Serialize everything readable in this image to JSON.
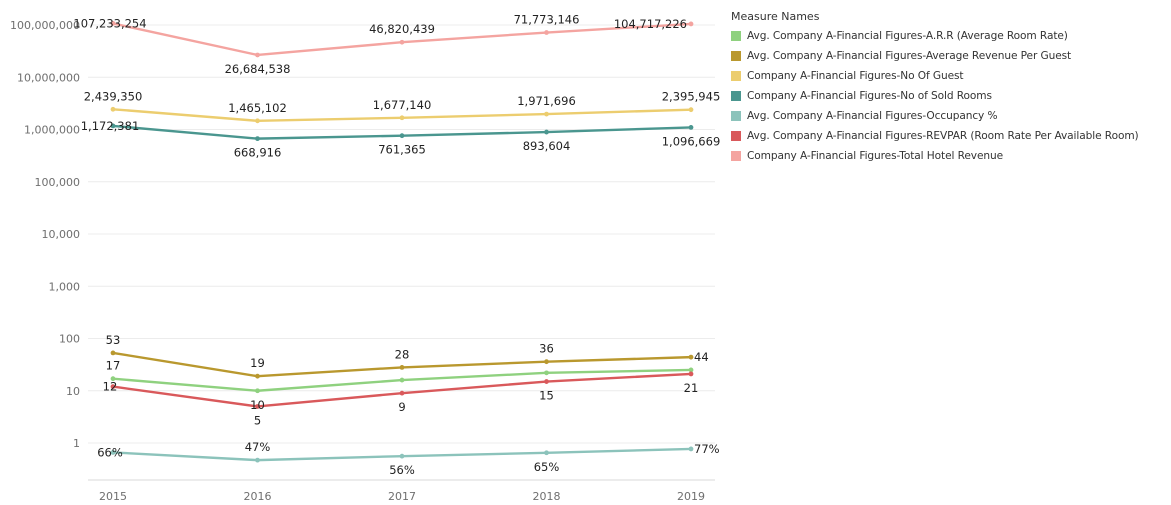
{
  "chart_data": {
    "type": "line",
    "yscale": "log",
    "ylim": [
      1,
      100000000
    ],
    "y_ticks": [
      "1",
      "10",
      "100",
      "1,000",
      "10,000",
      "100,000",
      "1,000,000",
      "10,000,000",
      "100,000,000"
    ],
    "categories": [
      "2015",
      "2016",
      "2017",
      "2018",
      "2019"
    ],
    "grid": true,
    "legend_position": "right",
    "legend_title": "Measure Names",
    "series": [
      {
        "name": "Avg. Company A-Financial Figures-A.R.R (Average Room Rate)",
        "color": "#8fd17f",
        "values": [
          17,
          10,
          16,
          22,
          25
        ],
        "labels": [
          "17",
          "10",
          "",
          "",
          ""
        ],
        "label_pos": [
          "above",
          "below",
          "",
          "",
          ""
        ]
      },
      {
        "name": "Avg. Company A-Financial Figures-Average Revenue Per Guest",
        "color": "#b9982e",
        "values": [
          53,
          19,
          28,
          36,
          44
        ],
        "labels": [
          "53",
          "19",
          "28",
          "36",
          "44"
        ],
        "label_pos": [
          "above",
          "above",
          "above",
          "above",
          "right"
        ]
      },
      {
        "name": "Company A-Financial Figures-No Of Guest",
        "color": "#eccd6f",
        "values": [
          2439350,
          1465102,
          1677140,
          1971696,
          2395945
        ],
        "labels": [
          "2,439,350",
          "1,465,102",
          "1,677,140",
          "1,971,696",
          "2,395,945"
        ],
        "label_pos": [
          "above",
          "above",
          "above",
          "above",
          "above"
        ]
      },
      {
        "name": "Company A-Financial Figures-No of Sold Rooms",
        "color": "#4a968f",
        "values": [
          1172381,
          668916,
          761365,
          893604,
          1096669
        ],
        "labels": [
          "1,172,381",
          "668,916",
          "761,365",
          "893,604",
          "1,096,669"
        ],
        "label_pos": [
          "left",
          "below",
          "below",
          "below",
          "below"
        ]
      },
      {
        "name": "Avg. Company A-Financial Figures-Occupancy %",
        "color": "#8cc3bb",
        "values": [
          0.66,
          0.47,
          0.56,
          0.65,
          0.77
        ],
        "labels": [
          "66%",
          "47%",
          "56%",
          "65%",
          "77%"
        ],
        "label_pos": [
          "left",
          "above",
          "below",
          "below",
          "right"
        ]
      },
      {
        "name": "Avg. Company A-Financial Figures-REVPAR (Room Rate Per Available Room)",
        "color": "#d9595b",
        "values": [
          12,
          5,
          9,
          15,
          21
        ],
        "labels": [
          "12",
          "5",
          "9",
          "15",
          "21"
        ],
        "label_pos": [
          "left",
          "below",
          "below",
          "below",
          "below"
        ]
      },
      {
        "name": "Company A-Financial Figures-Total Hotel Revenue",
        "color": "#f4a4a0",
        "values": [
          107233254,
          26684538,
          46820439,
          71773146,
          104717226
        ],
        "labels": [
          "107,233,254",
          "26,684,538",
          "46,820,439",
          "71,773,146",
          "104,717,226"
        ],
        "label_pos": [
          "left",
          "below",
          "above",
          "above",
          "left"
        ]
      }
    ]
  }
}
